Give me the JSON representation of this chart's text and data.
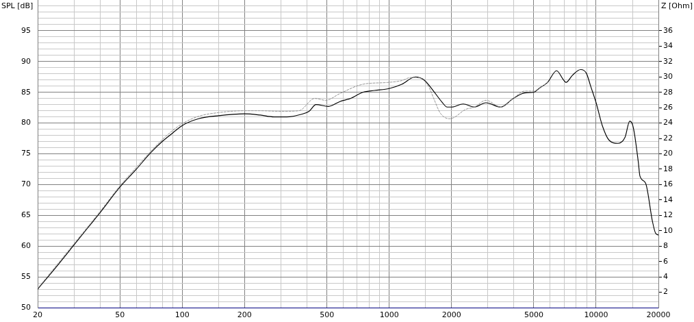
{
  "chart_data": {
    "type": "line",
    "ylabel": "SPL [dB]",
    "y2label": "Z [Ohm]",
    "log": "x",
    "grid": true,
    "legend": false,
    "marker": "none",
    "xlim": [
      20,
      20000
    ],
    "ylim": [
      50,
      100
    ],
    "y2lim": [
      0,
      40
    ],
    "xticks": [
      20,
      {
        "value": 30,
        "label": null
      },
      {
        "value": 40,
        "label": null
      },
      50,
      {
        "value": 60,
        "label": null
      },
      {
        "value": 70,
        "label": null
      },
      {
        "value": 80,
        "label": null
      },
      {
        "value": 90,
        "label": null
      },
      100,
      {
        "value": 150,
        "label": null
      },
      200,
      {
        "value": 300,
        "label": null
      },
      {
        "value": 400,
        "label": null
      },
      500,
      {
        "value": 600,
        "label": null
      },
      {
        "value": 700,
        "label": null
      },
      {
        "value": 800,
        "label": null
      },
      {
        "value": 900,
        "label": null
      },
      1000,
      {
        "value": 1500,
        "label": null
      },
      2000,
      {
        "value": 3000,
        "label": null
      },
      {
        "value": 4000,
        "label": null
      },
      5000,
      {
        "value": 6000,
        "label": null
      },
      {
        "value": 7000,
        "label": null
      },
      {
        "value": 8000,
        "label": null
      },
      {
        "value": 9000,
        "label": null
      },
      10000,
      {
        "value": 15000,
        "label": null
      },
      20000
    ],
    "yticks": [
      50,
      {
        "value": 51,
        "label": null
      },
      {
        "value": 52,
        "label": null
      },
      {
        "value": 53,
        "label": null
      },
      {
        "value": 54,
        "label": null
      },
      55,
      {
        "value": 56,
        "label": null
      },
      {
        "value": 57,
        "label": null
      },
      {
        "value": 58,
        "label": null
      },
      {
        "value": 59,
        "label": null
      },
      60,
      {
        "value": 61,
        "label": null
      },
      {
        "value": 62,
        "label": null
      },
      {
        "value": 63,
        "label": null
      },
      {
        "value": 64,
        "label": null
      },
      65,
      {
        "value": 66,
        "label": null
      },
      {
        "value": 67,
        "label": null
      },
      {
        "value": 68,
        "label": null
      },
      {
        "value": 69,
        "label": null
      },
      70,
      {
        "value": 71,
        "label": null
      },
      {
        "value": 72,
        "label": null
      },
      {
        "value": 73,
        "label": null
      },
      {
        "value": 74,
        "label": null
      },
      75,
      {
        "value": 76,
        "label": null
      },
      {
        "value": 77,
        "label": null
      },
      {
        "value": 78,
        "label": null
      },
      {
        "value": 79,
        "label": null
      },
      80,
      {
        "value": 81,
        "label": null
      },
      {
        "value": 82,
        "label": null
      },
      {
        "value": 83,
        "label": null
      },
      {
        "value": 84,
        "label": null
      },
      85,
      {
        "value": 86,
        "label": null
      },
      {
        "value": 87,
        "label": null
      },
      {
        "value": 88,
        "label": null
      },
      {
        "value": 89,
        "label": null
      },
      90,
      {
        "value": 91,
        "label": null
      },
      {
        "value": 92,
        "label": null
      },
      {
        "value": 93,
        "label": null
      },
      {
        "value": 94,
        "label": null
      },
      95,
      {
        "value": 96,
        "label": null
      },
      {
        "value": 97,
        "label": null
      },
      {
        "value": 98,
        "label": null
      },
      {
        "value": 99,
        "label": null
      }
    ],
    "y2ticks": [
      2,
      4,
      6,
      8,
      10,
      12,
      14,
      16,
      18,
      20,
      22,
      24,
      26,
      28,
      30,
      32,
      34,
      36
    ],
    "series": [
      {
        "color": "#909090",
        "line_style": "dashed",
        "x": [
          20,
          30,
          40,
          50,
          60,
          70,
          80,
          90,
          100,
          120,
          150,
          200,
          238,
          299,
          366,
          437,
          494,
          578,
          745,
          981,
          1150,
          1270,
          1404,
          1552,
          1650,
          1767,
          1956,
          2057,
          2335,
          2583,
          2934,
          3460,
          3979,
          4519,
          5000,
          5330,
          5823
        ],
        "values": [
          53.1,
          60.4,
          65.6,
          69.8,
          72.8,
          75.3,
          77.3,
          78.8,
          79.9,
          81.1,
          81.7,
          82.0,
          82.0,
          81.9,
          82.0,
          84.0,
          83.7,
          84.8,
          86.3,
          86.6,
          86.9,
          87.4,
          87.3,
          85.9,
          83.8,
          81.6,
          80.7,
          80.9,
          82.2,
          82.6,
          83.7,
          82.6,
          84.0,
          85.2,
          85.2,
          85.7,
          86.6
        ]
      },
      {
        "color": "#000000",
        "line_style": "solid",
        "x": [
          20,
          25,
          30,
          35,
          40,
          50,
          60,
          70,
          80,
          90,
          100,
          120,
          150,
          200,
          238,
          277,
          320,
          375,
          410,
          443,
          509,
          578,
          650,
          745,
          850,
          1000,
          1150,
          1336,
          1475,
          1637,
          1800,
          1906,
          2006,
          2277,
          2583,
          2934,
          3460,
          3979,
          4519,
          5000,
          5330,
          5823,
          6442,
          6955,
          7150,
          7700,
          8420,
          8970,
          9430,
          10000,
          10710,
          11560,
          12770,
          13800,
          14530,
          14940,
          15280,
          16000,
          16280,
          17350,
          18720,
          19370,
          20000
        ],
        "values": [
          53.0,
          56.9,
          60.2,
          63.0,
          65.4,
          69.6,
          72.5,
          75.1,
          77.0,
          78.4,
          79.6,
          80.7,
          81.2,
          81.5,
          81.3,
          81.0,
          81.0,
          81.4,
          81.9,
          83.0,
          82.7,
          83.5,
          84.0,
          85.0,
          85.3,
          85.6,
          86.3,
          87.5,
          87.0,
          85.2,
          83.4,
          82.6,
          82.6,
          83.1,
          82.6,
          83.3,
          82.6,
          84.0,
          84.9,
          85.0,
          85.7,
          86.6,
          88.5,
          87.0,
          86.6,
          87.8,
          88.7,
          88.1,
          85.9,
          83.3,
          79.6,
          77.2,
          76.7,
          77.7,
          80.3,
          79.9,
          78.5,
          73.6,
          71.4,
          70.2,
          64.0,
          62.1,
          61.8
        ]
      }
    ]
  }
}
